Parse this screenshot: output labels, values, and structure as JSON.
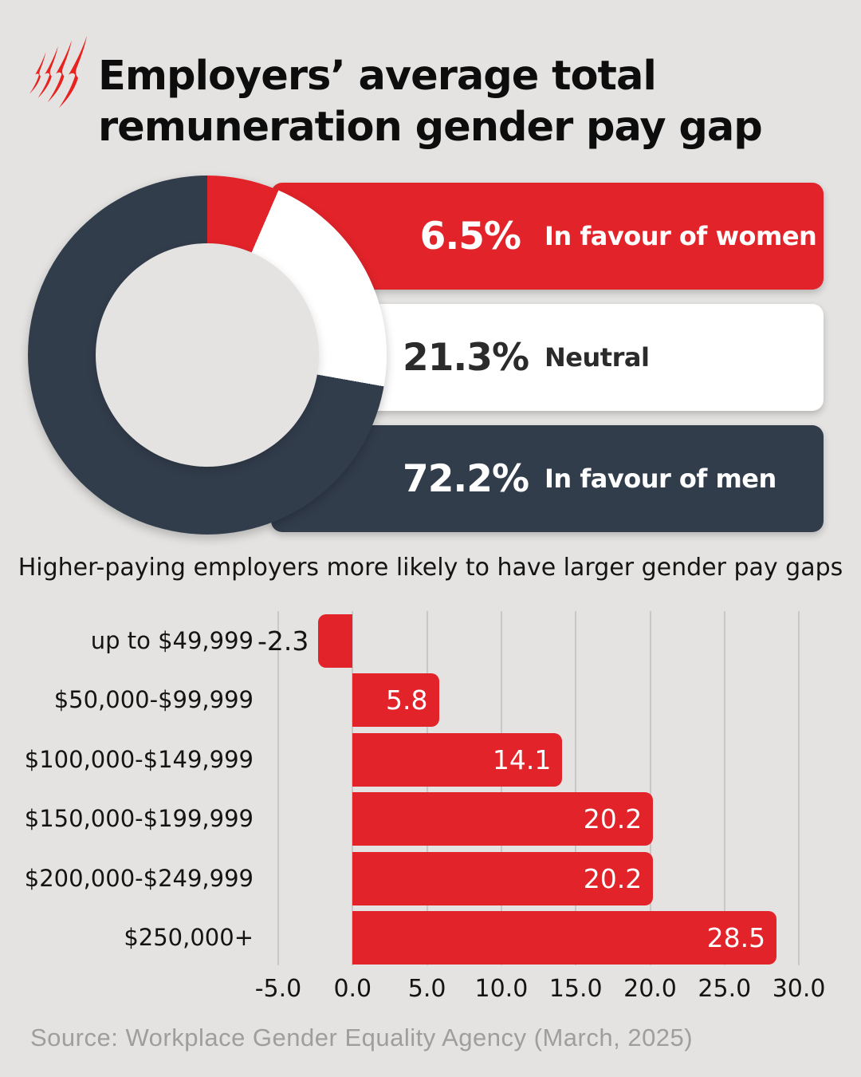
{
  "brand": {
    "logo": "sbs-mercury-logo",
    "logo_color": "#e8221f"
  },
  "title": {
    "line1": "Employers’ average total",
    "line2": "remuneration gender pay gap"
  },
  "colors": {
    "background": "#e4e3e1",
    "red": "#e2232a",
    "navy": "#323d4c",
    "white": "#ffffff",
    "gridline": "#c8c8c6",
    "source_gray": "#9e9e9c"
  },
  "chart_data": [
    {
      "type": "pie",
      "subtype": "donut",
      "start_angle_deg": 0,
      "direction": "clockwise",
      "segments": [
        {
          "label": "In favour of women",
          "value": 6.5,
          "value_text": "6.5%",
          "color": "#e2232a",
          "text_color": "#ffffff"
        },
        {
          "label": "Neutral",
          "value": 21.3,
          "value_text": "21.3%",
          "color": "#ffffff",
          "text_color": "#2b2b2b"
        },
        {
          "label": "In favour of men",
          "value": 72.2,
          "value_text": "72.2%",
          "color": "#323d4c",
          "text_color": "#ffffff"
        }
      ]
    },
    {
      "type": "bar",
      "orientation": "horizontal",
      "title": "Higher-paying employers more likely to have larger gender pay gaps",
      "categories": [
        "up to $49,999",
        "$50,000-$99,999",
        "$100,000-$149,999",
        "$150,000-$199,999",
        "$200,000-$249,999",
        "$250,000+"
      ],
      "values": [
        -2.3,
        5.8,
        14.1,
        20.2,
        20.2,
        28.5
      ],
      "value_labels": [
        "-2.3",
        "5.8",
        "14.1",
        "20.2",
        "20.2",
        "28.5"
      ],
      "x_ticks": [
        "-5.0",
        "0.0",
        "5.0",
        "10.0",
        "15.0",
        "20.0",
        "25.0",
        "30.0"
      ],
      "x_tick_values": [
        -5,
        0,
        5,
        10,
        15,
        20,
        25,
        30
      ],
      "xlim": [
        -5,
        30
      ],
      "grid": true,
      "bar_color": "#e2232a"
    }
  ],
  "source": "Source: Workplace Gender Equality Agency (March, 2025)"
}
